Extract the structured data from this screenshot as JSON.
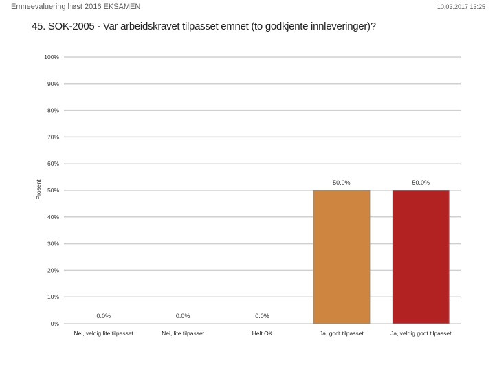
{
  "header": {
    "left": "Emneevaluering høst 2016 EKSAMEN",
    "right": "10.03.2017 13:25"
  },
  "chart_data": {
    "type": "bar",
    "title": "45. SOK-2005 - Var arbeidskravet tilpasset emnet (to godkjente innleveringer)?",
    "ylabel": "Prosent",
    "xlabel": "",
    "ylim": [
      0,
      100
    ],
    "yticks": [
      "0%",
      "10%",
      "20%",
      "30%",
      "40%",
      "50%",
      "60%",
      "70%",
      "80%",
      "90%",
      "100%"
    ],
    "categories": [
      "Nei, veldig lite tilpasset",
      "Nei, lite tilpasset",
      "Helt OK",
      "Ja, godt tilpasset",
      "Ja, veldig godt tilpasset"
    ],
    "values": [
      0.0,
      0.0,
      0.0,
      50.0,
      50.0
    ],
    "data_labels": [
      "0.0%",
      "0.0%",
      "0.0%",
      "50.0%",
      "50.0%"
    ],
    "colors": [
      "#cccccc",
      "#cccccc",
      "#cccccc",
      "#cd8540",
      "#b22222"
    ],
    "grid": true
  }
}
